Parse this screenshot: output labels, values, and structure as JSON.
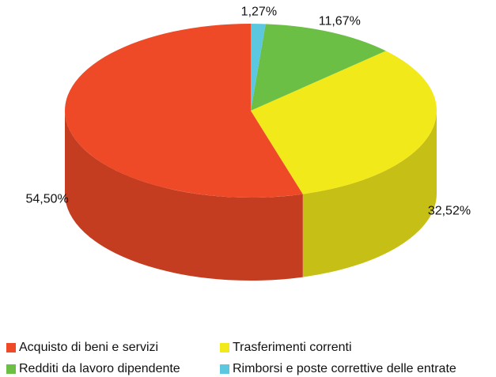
{
  "chart_data": {
    "type": "pie3d",
    "series": [
      {
        "name": "Acquisto di beni e servizi",
        "color": "#ef4a28"
      },
      {
        "name": "Trasferimenti correnti",
        "color": "#f2e91a"
      },
      {
        "name": "Redditi da lavoro dipendente",
        "color": "#6cbf45"
      },
      {
        "name": "Rimborsi e poste correttive delle entrate",
        "color": "#5bc8e0"
      }
    ],
    "values": [
      54.5,
      32.52,
      11.67,
      1.27
    ],
    "value_labels": [
      "54,50%",
      "32,52%",
      "11,67%",
      "1,27%"
    ],
    "legend": "bottom"
  }
}
